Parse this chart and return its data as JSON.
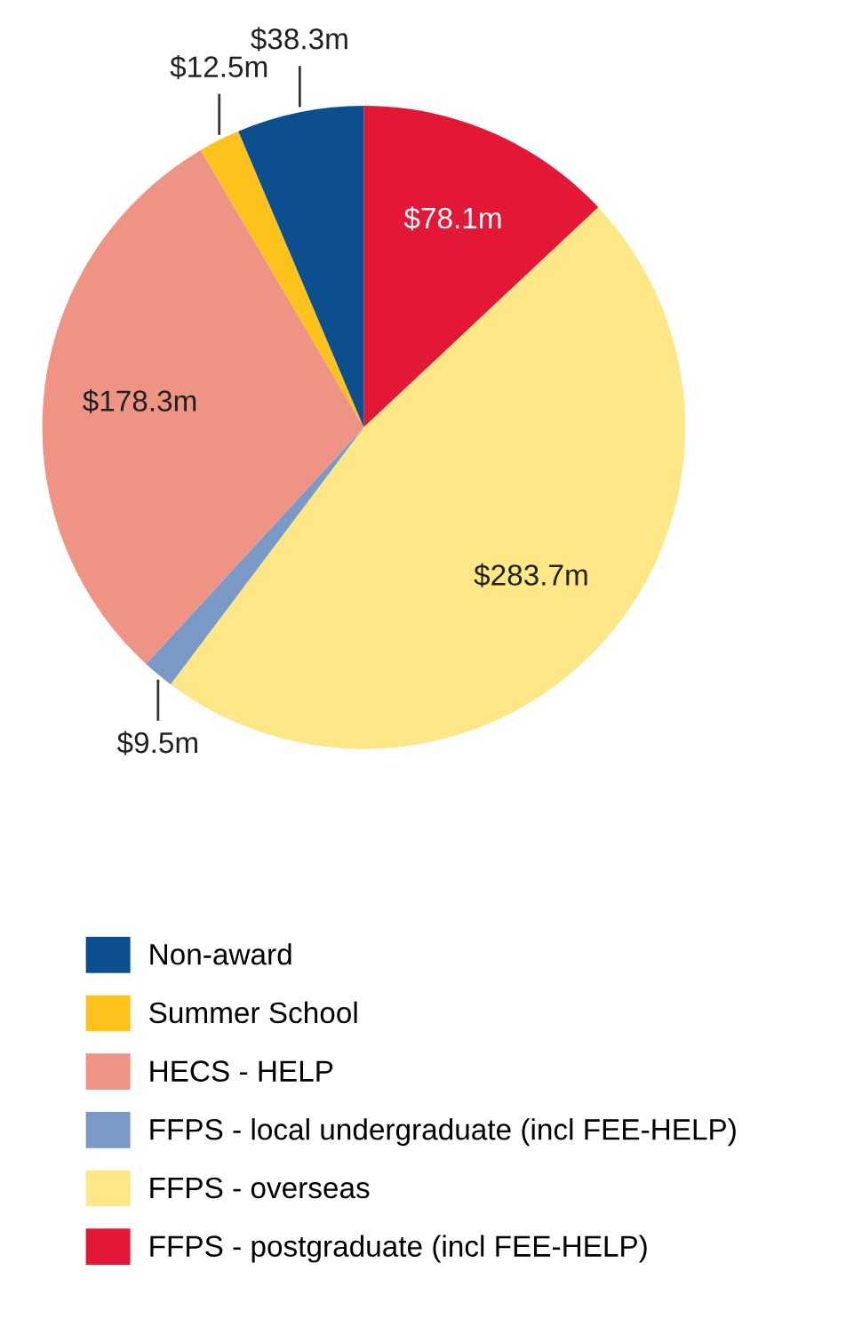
{
  "chart_data": {
    "type": "pie",
    "categories": [
      "FFPS - postgraduate (incl FEE-HELP)",
      "FFPS - overseas",
      "FFPS - local undergraduate (incl FEE-HELP)",
      "HECS - HELP",
      "Summer School",
      "Non-award"
    ],
    "values": [
      78.1,
      283.7,
      9.5,
      178.3,
      12.5,
      38.3
    ],
    "colors": [
      "#e31837",
      "#fee787",
      "#7b99c6",
      "#ef9484",
      "#fdc21b",
      "#0b4f8f"
    ],
    "value_labels": [
      "$78.1m",
      "$283.7m",
      "$9.5m",
      "$178.3m",
      "$12.5m",
      "$38.3m"
    ],
    "legend": "bottom"
  }
}
